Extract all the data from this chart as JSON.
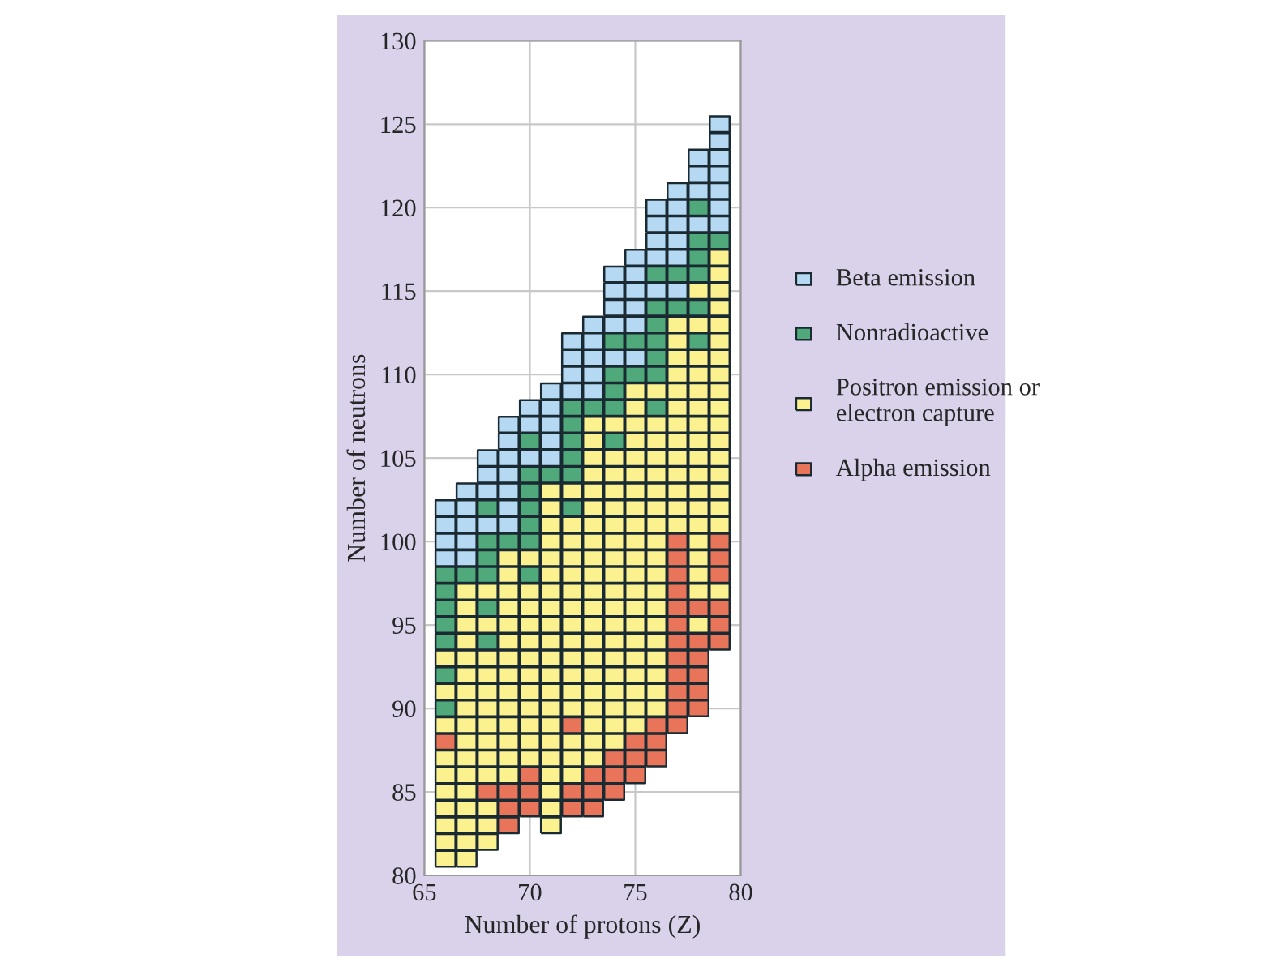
{
  "chart_data": {
    "type": "scatter",
    "xlabel": "Number of protons (Z)",
    "ylabel": "Number of neutrons",
    "xlim": [
      65,
      80
    ],
    "ylim": [
      80,
      130
    ],
    "xticks": [
      65,
      70,
      75,
      80
    ],
    "yticks": [
      80,
      85,
      90,
      95,
      100,
      105,
      110,
      115,
      120,
      125,
      130
    ],
    "grid": true,
    "legend": "right",
    "marker": "square",
    "series": [
      {
        "name": "Beta emission",
        "color": "#b5d9f2",
        "x": [
          66,
          66,
          66,
          66,
          67,
          67,
          67,
          67,
          67,
          68,
          68,
          68,
          68,
          69,
          69,
          69,
          69,
          69,
          69,
          69,
          70,
          70,
          70,
          71,
          71,
          71,
          71,
          71,
          72,
          72,
          72,
          72,
          73,
          73,
          73,
          73,
          73,
          74,
          74,
          74,
          74,
          74,
          75,
          75,
          75,
          75,
          75,
          75,
          76,
          76,
          76,
          76,
          76,
          77,
          77,
          77,
          77,
          77,
          77,
          78,
          78,
          78,
          78,
          79,
          79,
          79,
          79,
          79,
          79,
          79
        ],
        "values": [
          99,
          100,
          101,
          102,
          99,
          100,
          101,
          102,
          103,
          101,
          103,
          104,
          105,
          101,
          102,
          103,
          104,
          105,
          106,
          107,
          105,
          107,
          108,
          105,
          106,
          107,
          108,
          109,
          109,
          110,
          111,
          112,
          109,
          110,
          111,
          112,
          113,
          111,
          113,
          114,
          115,
          116,
          111,
          113,
          114,
          115,
          116,
          117,
          115,
          117,
          118,
          119,
          120,
          115,
          117,
          118,
          119,
          120,
          121,
          119,
          121,
          122,
          123,
          119,
          120,
          121,
          122,
          123,
          124,
          125
        ]
      },
      {
        "name": "Nonradioactive",
        "color": "#4fa97a",
        "x": [
          66,
          66,
          66,
          66,
          66,
          66,
          66,
          67,
          68,
          68,
          68,
          68,
          68,
          68,
          69,
          70,
          70,
          70,
          70,
          70,
          70,
          70,
          71,
          72,
          72,
          72,
          72,
          72,
          72,
          73,
          74,
          74,
          74,
          74,
          74,
          75,
          75,
          76,
          76,
          76,
          76,
          76,
          76,
          76,
          77,
          77,
          78,
          78,
          78,
          78,
          78,
          78,
          79
        ],
        "values": [
          90,
          92,
          94,
          95,
          96,
          97,
          98,
          98,
          94,
          96,
          98,
          99,
          100,
          102,
          100,
          98,
          100,
          101,
          102,
          103,
          104,
          106,
          104,
          102,
          104,
          105,
          106,
          107,
          108,
          108,
          106,
          108,
          109,
          110,
          112,
          110,
          112,
          108,
          110,
          111,
          112,
          113,
          114,
          116,
          114,
          116,
          112,
          114,
          116,
          117,
          118,
          120,
          118
        ]
      },
      {
        "name": "Positron emission or\nelectron capture",
        "color": "#fbf18e",
        "x": [
          66,
          66,
          66,
          66,
          66,
          66,
          66,
          66,
          66,
          66,
          67,
          67,
          67,
          67,
          67,
          67,
          67,
          67,
          67,
          67,
          67,
          67,
          67,
          67,
          67,
          67,
          67,
          68,
          68,
          68,
          68,
          68,
          68,
          68,
          68,
          68,
          68,
          68,
          68,
          68,
          69,
          69,
          69,
          69,
          69,
          69,
          69,
          69,
          69,
          69,
          69,
          69,
          69,
          69,
          70,
          70,
          70,
          70,
          70,
          70,
          70,
          70,
          70,
          70,
          70,
          70,
          71,
          71,
          71,
          71,
          71,
          71,
          71,
          71,
          71,
          71,
          71,
          71,
          71,
          71,
          71,
          71,
          71,
          71,
          71,
          71,
          71,
          72,
          72,
          72,
          72,
          72,
          72,
          72,
          72,
          72,
          72,
          72,
          72,
          72,
          72,
          72,
          72,
          73,
          73,
          73,
          73,
          73,
          73,
          73,
          73,
          73,
          73,
          73,
          73,
          73,
          73,
          73,
          73,
          73,
          73,
          73,
          73,
          73,
          74,
          74,
          74,
          74,
          74,
          74,
          74,
          74,
          74,
          74,
          74,
          74,
          74,
          74,
          74,
          74,
          74,
          74,
          74,
          75,
          75,
          75,
          75,
          75,
          75,
          75,
          75,
          75,
          75,
          75,
          75,
          75,
          75,
          75,
          75,
          75,
          75,
          75,
          75,
          75,
          76,
          76,
          76,
          76,
          76,
          76,
          76,
          76,
          76,
          76,
          76,
          76,
          76,
          76,
          76,
          76,
          76,
          76,
          76,
          77,
          77,
          77,
          77,
          77,
          77,
          77,
          77,
          77,
          77,
          77,
          77,
          77,
          78,
          78,
          78,
          78,
          78,
          78,
          78,
          78,
          78,
          78,
          78,
          78,
          78,
          78,
          78,
          78,
          78,
          78,
          79,
          79,
          79,
          79,
          79,
          79,
          79,
          79,
          79,
          79,
          79,
          79,
          79,
          79,
          79,
          79,
          79,
          79
        ],
        "values": [
          81,
          82,
          83,
          84,
          85,
          86,
          87,
          89,
          91,
          93,
          81,
          82,
          83,
          84,
          85,
          86,
          87,
          88,
          89,
          90,
          91,
          92,
          93,
          94,
          95,
          96,
          97,
          82,
          83,
          84,
          86,
          87,
          88,
          89,
          90,
          91,
          92,
          93,
          95,
          97,
          86,
          87,
          88,
          89,
          90,
          91,
          92,
          93,
          94,
          95,
          96,
          97,
          98,
          99,
          87,
          88,
          89,
          90,
          91,
          92,
          93,
          94,
          95,
          96,
          97,
          99,
          83,
          84,
          85,
          86,
          87,
          88,
          89,
          90,
          91,
          92,
          93,
          94,
          95,
          96,
          97,
          98,
          99,
          100,
          101,
          102,
          103,
          86,
          87,
          88,
          90,
          91,
          92,
          93,
          94,
          95,
          96,
          97,
          98,
          99,
          100,
          101,
          103,
          87,
          88,
          89,
          90,
          91,
          92,
          93,
          94,
          95,
          96,
          97,
          98,
          99,
          100,
          101,
          102,
          103,
          104,
          105,
          106,
          107,
          88,
          89,
          90,
          91,
          92,
          93,
          94,
          95,
          96,
          97,
          98,
          99,
          100,
          101,
          102,
          103,
          104,
          105,
          107,
          89,
          90,
          91,
          92,
          93,
          94,
          95,
          96,
          97,
          98,
          99,
          100,
          101,
          102,
          103,
          104,
          105,
          106,
          107,
          108,
          109,
          90,
          91,
          92,
          93,
          94,
          95,
          96,
          97,
          98,
          99,
          100,
          101,
          102,
          103,
          104,
          105,
          106,
          107,
          109,
          101,
          102,
          103,
          104,
          105,
          106,
          107,
          108,
          109,
          110,
          111,
          112,
          113,
          95,
          97,
          98,
          99,
          100,
          101,
          102,
          103,
          104,
          105,
          106,
          107,
          108,
          109,
          110,
          111,
          113,
          115,
          97,
          101,
          102,
          103,
          104,
          105,
          106,
          107,
          108,
          109,
          110,
          111,
          112,
          113,
          114,
          115,
          116,
          117
        ]
      },
      {
        "name": "Alpha emission",
        "color": "#e8755a",
        "x": [
          66,
          68,
          69,
          69,
          69,
          70,
          70,
          70,
          72,
          72,
          72,
          73,
          73,
          73,
          74,
          74,
          74,
          75,
          75,
          75,
          76,
          76,
          76,
          77,
          77,
          77,
          77,
          77,
          77,
          77,
          77,
          77,
          77,
          77,
          77,
          78,
          78,
          78,
          78,
          78,
          78,
          79,
          79,
          79,
          79,
          79,
          79
        ],
        "values": [
          88,
          85,
          83,
          84,
          85,
          84,
          85,
          86,
          84,
          85,
          89,
          84,
          85,
          86,
          85,
          86,
          87,
          86,
          87,
          88,
          87,
          88,
          89,
          89,
          90,
          91,
          92,
          93,
          94,
          95,
          96,
          97,
          98,
          99,
          100,
          90,
          91,
          92,
          93,
          94,
          96,
          94,
          95,
          96,
          98,
          99,
          100
        ]
      }
    ]
  }
}
